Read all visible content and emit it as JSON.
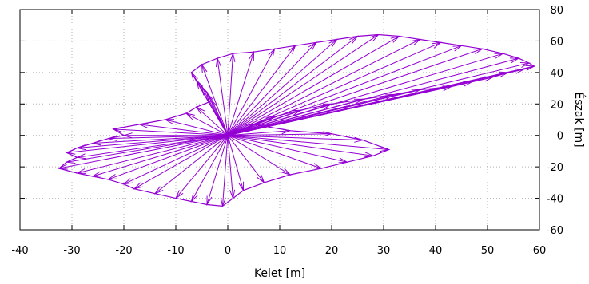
{
  "chart_data": {
    "type": "vector-field",
    "title": "",
    "xlabel": "Kelet [m]",
    "ylabel": "Észak [m]",
    "xlim": [
      -40,
      60
    ],
    "ylim": [
      -60,
      80
    ],
    "x_ticks": [
      "-40",
      "-30",
      "-20",
      "-10",
      "0",
      "10",
      "20",
      "30",
      "40",
      "50",
      "60"
    ],
    "y_ticks": [
      "-60",
      "-40",
      "-20",
      "0",
      "20",
      "40",
      "60",
      "80"
    ],
    "x_tick_values": [
      -40,
      -30,
      -20,
      -10,
      0,
      10,
      20,
      30,
      40,
      50,
      60
    ],
    "y_tick_values": [
      -60,
      -40,
      -20,
      0,
      20,
      40,
      60,
      80
    ],
    "y_axis_side": "right",
    "grid": true,
    "origin": [
      0,
      0
    ],
    "color": "#9400d3",
    "endpoints": [
      [
        -32.5,
        -21
      ],
      [
        -31,
        -17
      ],
      [
        -29,
        -14
      ],
      [
        -31,
        -11
      ],
      [
        -29,
        -8
      ],
      [
        -26,
        -5
      ],
      [
        -23,
        -2
      ],
      [
        -20,
        0
      ],
      [
        -22,
        4
      ],
      [
        -17,
        7
      ],
      [
        -12,
        10
      ],
      [
        -8,
        14
      ],
      [
        -6,
        18
      ],
      [
        -3,
        22
      ],
      [
        -4,
        27
      ],
      [
        -5,
        31
      ],
      [
        -6,
        35
      ],
      [
        -7,
        40
      ],
      [
        -5,
        45
      ],
      [
        -2,
        49
      ],
      [
        1,
        52
      ],
      [
        5,
        53
      ],
      [
        9,
        55
      ],
      [
        13,
        57
      ],
      [
        17,
        59
      ],
      [
        21,
        61
      ],
      [
        25,
        63
      ],
      [
        29,
        64
      ],
      [
        33,
        63
      ],
      [
        37,
        61
      ],
      [
        41,
        59
      ],
      [
        45,
        57
      ],
      [
        49,
        55
      ],
      [
        53,
        52
      ],
      [
        56,
        49
      ],
      [
        58,
        46
      ],
      [
        59,
        44
      ],
      [
        57,
        42
      ],
      [
        54,
        40
      ],
      [
        51,
        37
      ],
      [
        47,
        34
      ],
      [
        43,
        31
      ],
      [
        37,
        29
      ],
      [
        32,
        26
      ],
      [
        26,
        23
      ],
      [
        20,
        20
      ],
      [
        14,
        16
      ],
      [
        9,
        12
      ],
      [
        5,
        7
      ],
      [
        12,
        3
      ],
      [
        20,
        1
      ],
      [
        26,
        -3
      ],
      [
        31,
        -9
      ],
      [
        28,
        -13
      ],
      [
        23,
        -17
      ],
      [
        18,
        -21
      ],
      [
        12,
        -25
      ],
      [
        7,
        -30
      ],
      [
        3,
        -35
      ],
      [
        1,
        -40
      ],
      [
        -1,
        -45
      ],
      [
        -4,
        -44
      ],
      [
        -7,
        -42
      ],
      [
        -10,
        -40
      ],
      [
        -14,
        -37
      ],
      [
        -18,
        -34
      ],
      [
        -20,
        -31
      ],
      [
        -23,
        -28
      ],
      [
        -26,
        -26
      ],
      [
        -29,
        -24
      ]
    ]
  }
}
